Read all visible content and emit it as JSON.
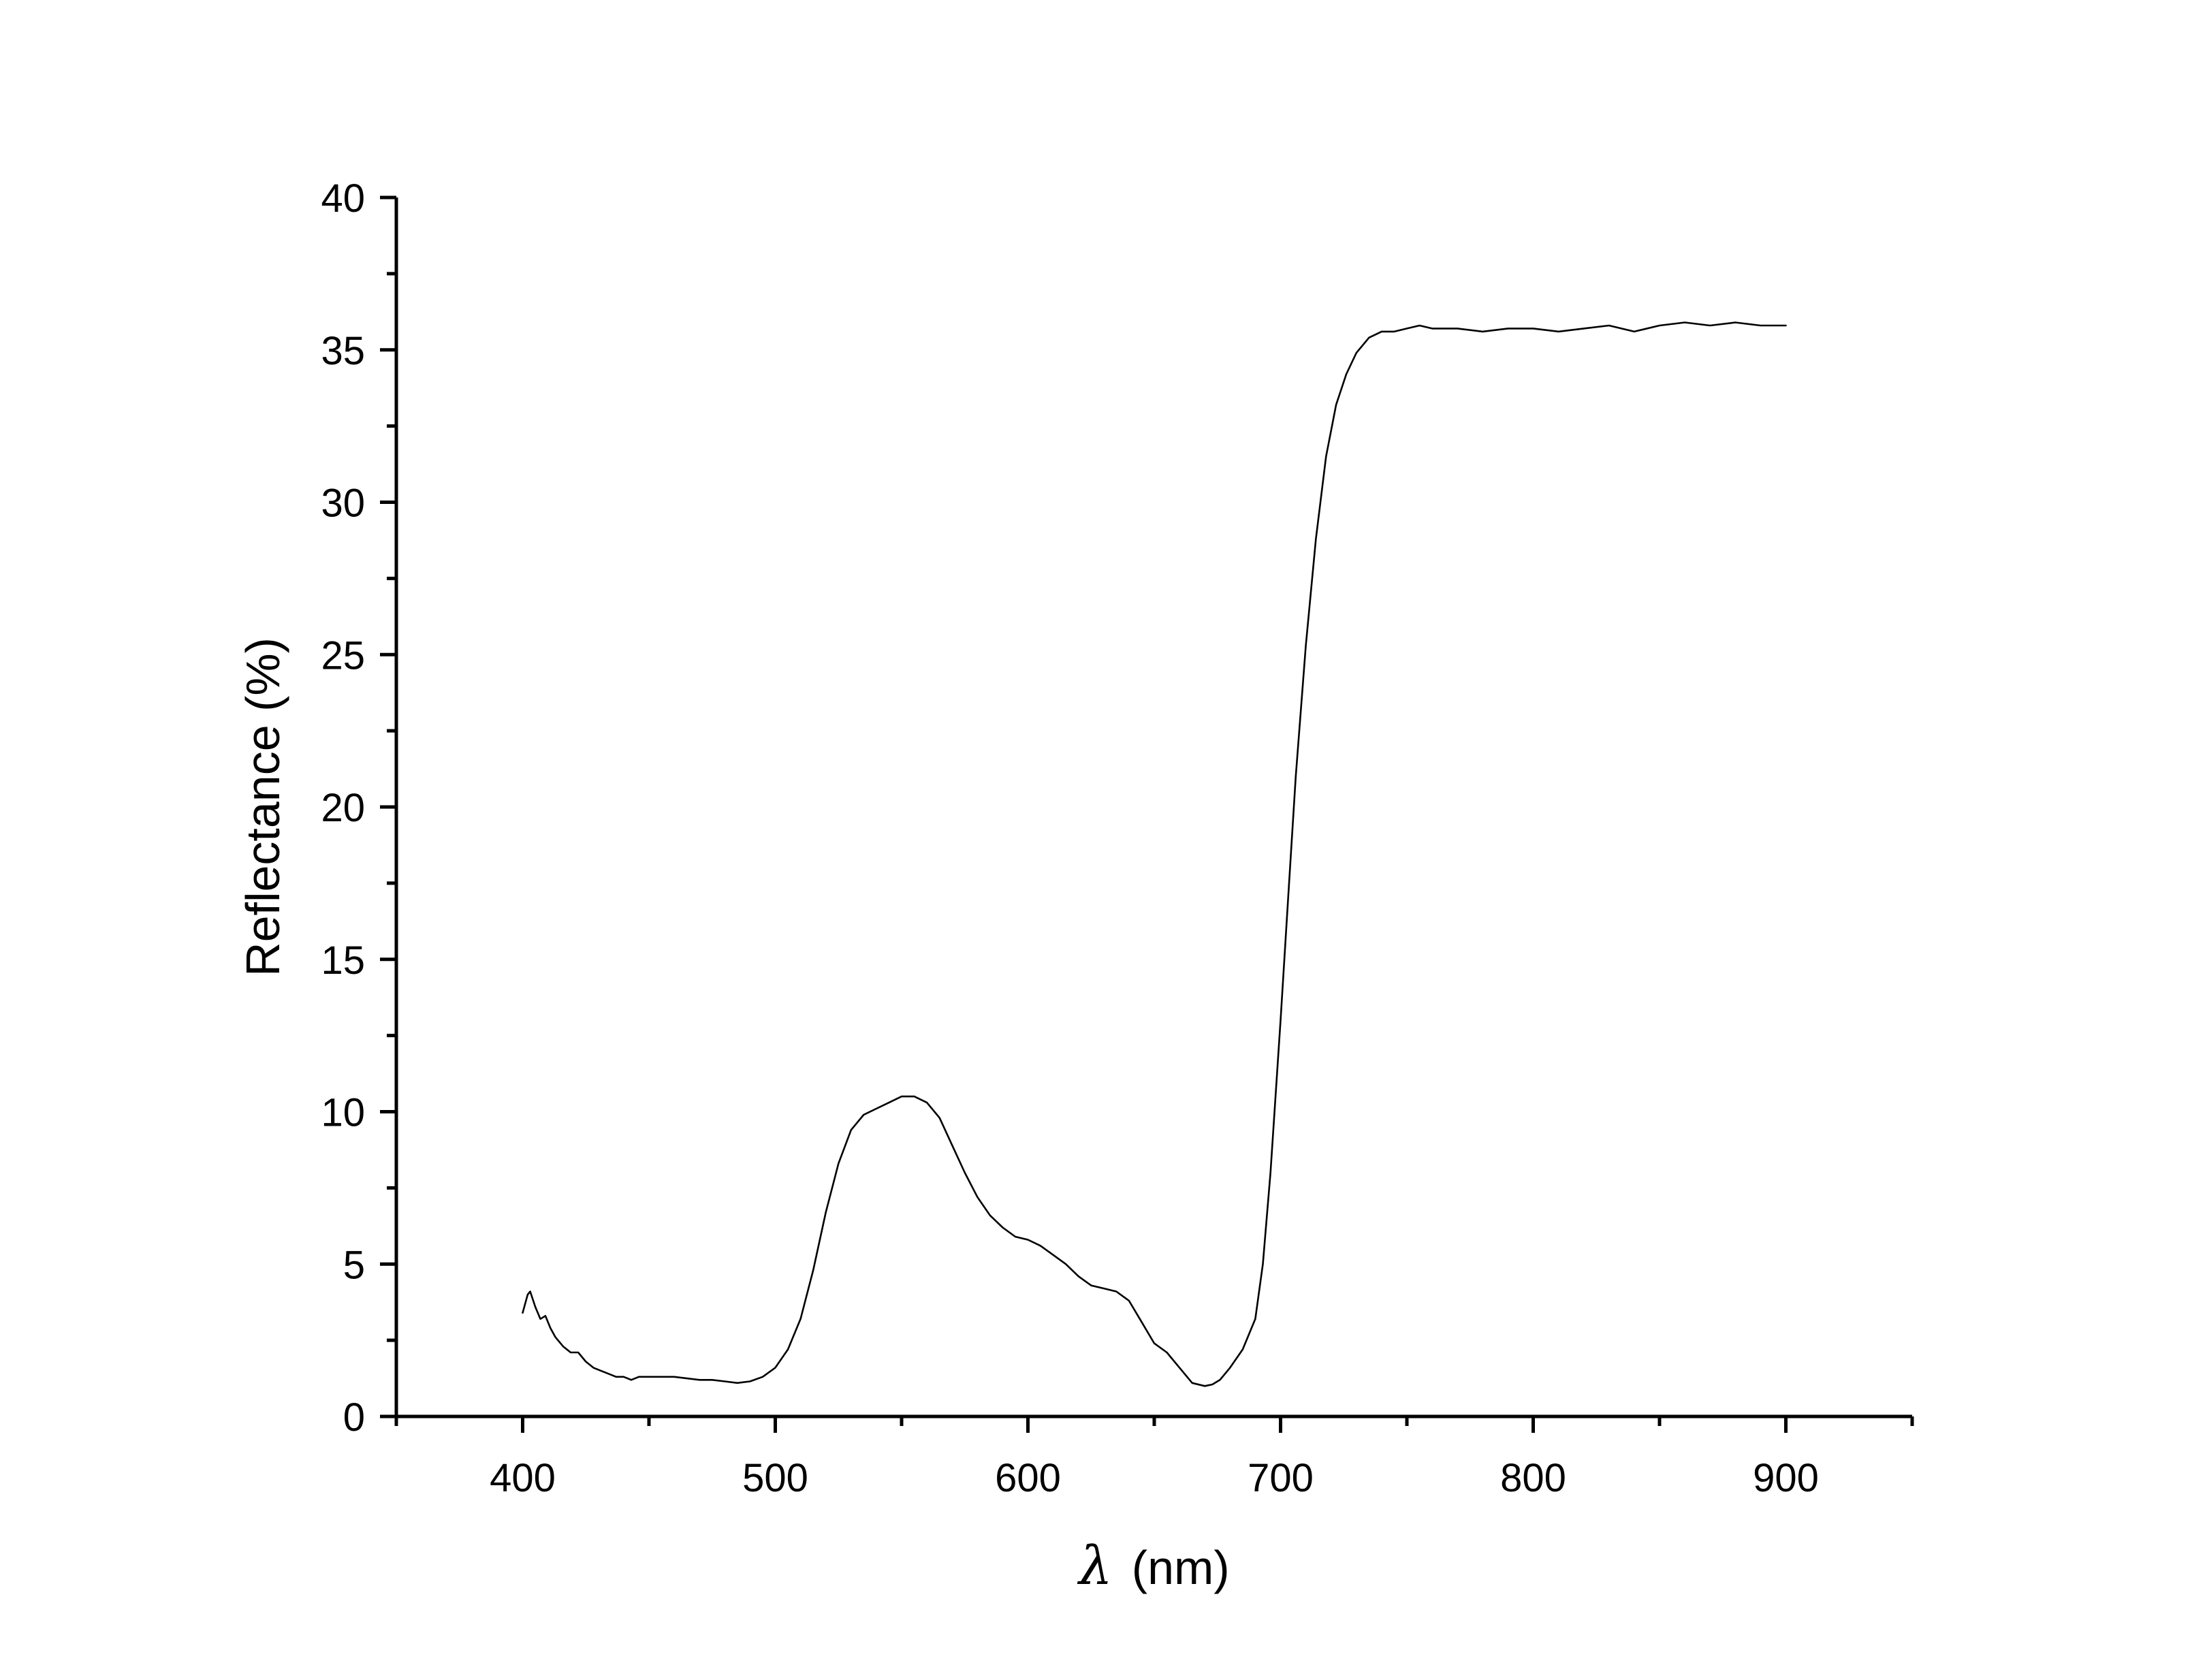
{
  "chart_data": {
    "type": "line",
    "title": "",
    "xlabel": "λ (nm)",
    "xlabel_symbol": "λ",
    "xlabel_unit": "(nm)",
    "ylabel": "Reflectance (%)",
    "xlim": [
      350,
      950
    ],
    "ylim": [
      0,
      40
    ],
    "x_ticks": [
      400,
      500,
      600,
      700,
      800,
      900
    ],
    "y_ticks": [
      0,
      5,
      10,
      15,
      20,
      25,
      30,
      35,
      40
    ],
    "grid": false,
    "legend": "none",
    "line_color": "#000000",
    "series": [
      {
        "x": [
          400,
          402,
          403,
          405,
          407,
          409,
          411,
          413,
          416,
          419,
          422,
          425,
          428,
          431,
          434,
          437,
          440,
          443,
          446,
          449,
          452,
          456,
          460,
          465,
          470,
          475,
          480,
          485,
          490,
          495,
          500,
          505,
          510,
          515,
          520,
          525,
          530,
          535,
          540,
          545,
          550,
          555,
          560,
          565,
          570,
          575,
          580,
          585,
          590,
          595,
          600,
          605,
          610,
          615,
          620,
          625,
          630,
          635,
          640,
          645,
          650,
          655,
          660,
          665,
          670,
          673,
          676,
          680,
          685,
          690,
          693,
          696,
          700,
          703,
          706,
          710,
          714,
          718,
          722,
          726,
          730,
          735,
          740,
          745,
          750,
          755,
          760,
          770,
          780,
          790,
          800,
          810,
          820,
          830,
          840,
          850,
          860,
          870,
          880,
          890,
          900
        ],
        "y": [
          3.4,
          4.0,
          4.1,
          3.6,
          3.2,
          3.3,
          2.9,
          2.6,
          2.3,
          2.1,
          2.1,
          1.8,
          1.6,
          1.5,
          1.4,
          1.3,
          1.3,
          1.2,
          1.3,
          1.3,
          1.3,
          1.3,
          1.3,
          1.25,
          1.2,
          1.2,
          1.15,
          1.1,
          1.15,
          1.3,
          1.6,
          2.2,
          3.2,
          4.8,
          6.7,
          8.3,
          9.4,
          9.9,
          10.1,
          10.3,
          10.5,
          10.5,
          10.3,
          9.8,
          8.9,
          8.0,
          7.2,
          6.6,
          6.2,
          5.9,
          5.8,
          5.6,
          5.3,
          5.0,
          4.6,
          4.3,
          4.2,
          4.1,
          3.8,
          3.1,
          2.4,
          2.1,
          1.6,
          1.1,
          1.0,
          1.05,
          1.2,
          1.6,
          2.2,
          3.2,
          5.0,
          8.0,
          13.0,
          17.0,
          21.0,
          25.3,
          28.8,
          31.5,
          33.2,
          34.2,
          34.9,
          35.4,
          35.6,
          35.6,
          35.7,
          35.8,
          35.7,
          35.7,
          35.6,
          35.7,
          35.7,
          35.6,
          35.7,
          35.8,
          35.6,
          35.8,
          35.9,
          35.8,
          35.9,
          35.8,
          35.8
        ]
      }
    ]
  }
}
